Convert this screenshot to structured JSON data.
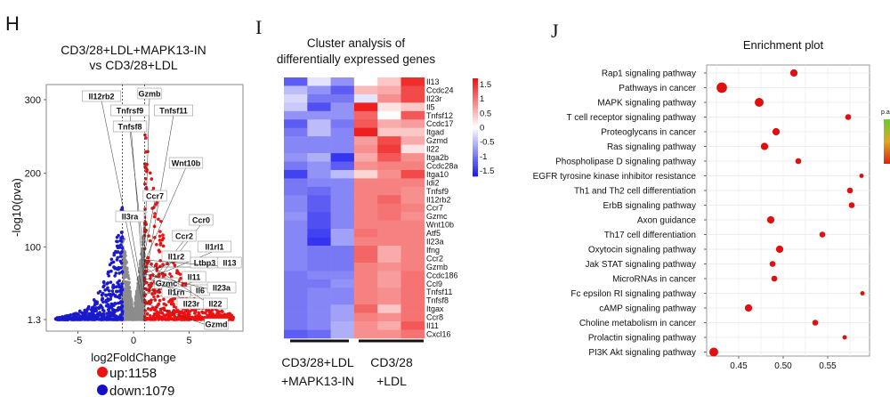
{
  "panels": {
    "h": "H",
    "i": "I",
    "j": "J"
  },
  "chart_data": [
    {
      "type": "scatter",
      "title": "CD3/28+LDL+MAPK13-IN vs CD3/28+LDL",
      "title_lines": [
        "CD3/28+LDL+MAPK13-IN",
        "vs CD3/28+LDL"
      ],
      "xlabel": "log2FoldChange",
      "ylabel": "-log10(pva)",
      "xticks": [
        "-5",
        "0",
        "5"
      ],
      "yticks": [
        "1.3",
        "100",
        "200",
        "300"
      ],
      "xlim": [
        -7.9,
        9.8
      ],
      "ylim": [
        -15,
        320
      ],
      "thresholds": {
        "log2fc": [
          -1,
          1
        ],
        "neg_log10_p": 1.3
      },
      "legend": [
        {
          "label": "up:1158",
          "color": "#ee1111"
        },
        {
          "label": "down:1079",
          "color": "#1111cc"
        }
      ],
      "colors": {
        "up": "#ee1111",
        "down": "#1a1acc",
        "ns": "#8c8c8c"
      },
      "labeled_genes": [
        "Il12rb2",
        "Gzmb",
        "Tnfrsf9",
        "Tnfsf11",
        "Tnfsf8",
        "Wnt10b",
        "Ccr7",
        "Il3ra",
        "Ccr0",
        "Ccr2",
        "Il1rl1",
        "Il1r2",
        "Ltbp3",
        "Il13",
        "Il11",
        "Gzmc",
        "Il1rn",
        "Il6",
        "Il23a",
        "Il23r",
        "Il22",
        "Gzmd"
      ]
    },
    {
      "type": "heatmap",
      "title_lines": [
        "Cluster analysis of",
        "differentially expressed genes"
      ],
      "groups": [
        {
          "label_lines": [
            "CD3/28+LDL",
            "+MAPK13-IN"
          ],
          "columns": 3
        },
        {
          "label_lines": [
            "CD3/28",
            "+LDL"
          ],
          "columns": 3
        }
      ],
      "rows": [
        "Il13",
        "Ccdc24",
        "Il23r",
        "Il5",
        "Tnfsf12",
        "Ccdc17",
        "Itgad",
        "Gzmd",
        "Il22",
        "Itga2b",
        "Ccdc28a",
        "Itga10",
        "Idi2",
        "Tnfsf9",
        "Il12rb2",
        "Ccr7",
        "Gzmc",
        "Wnt10b",
        "Atf5",
        "Il23a",
        "Ifng",
        "Ccr2",
        "Gzmb",
        "Ccdc186",
        "Ccl9",
        "Tnfsf11",
        "Tnfsf8",
        "Itgax",
        "Ccr8",
        "Il11",
        "Cxcl16"
      ],
      "values": [
        [
          -1.2,
          -0.2,
          -0.8,
          0.0,
          0.4,
          1.5
        ],
        [
          -0.5,
          -0.8,
          -1.2,
          0.5,
          0.6,
          1.3
        ],
        [
          -0.3,
          -1.0,
          -1.0,
          -0.2,
          0.8,
          1.3
        ],
        [
          -0.4,
          -1.3,
          -0.8,
          1.6,
          0.2,
          0.4
        ],
        [
          -0.8,
          -0.8,
          -0.8,
          1.1,
          0.0,
          1.2
        ],
        [
          -1.2,
          -0.5,
          -1.0,
          1.2,
          0.6,
          0.7
        ],
        [
          -1.0,
          -0.5,
          -0.9,
          1.6,
          0.4,
          0.4
        ],
        [
          -0.9,
          -0.9,
          -0.9,
          0.7,
          1.3,
          0.6
        ],
        [
          -0.9,
          -0.9,
          -0.9,
          0.8,
          1.4,
          0.2
        ],
        [
          -0.8,
          -0.6,
          -1.5,
          0.6,
          1.2,
          0.8
        ],
        [
          -1.0,
          -0.8,
          -1.2,
          0.8,
          0.9,
          0.9
        ],
        [
          -1.4,
          -0.8,
          -0.5,
          0.3,
          0.8,
          1.3
        ],
        [
          -1.0,
          -0.9,
          -0.9,
          0.9,
          0.9,
          0.9
        ],
        [
          -1.0,
          -1.1,
          -0.9,
          0.9,
          0.9,
          0.8
        ],
        [
          -0.9,
          -1.2,
          -0.9,
          0.9,
          1.1,
          0.8
        ],
        [
          -0.9,
          -1.2,
          -0.9,
          0.9,
          1.0,
          0.9
        ],
        [
          -0.8,
          -1.3,
          -0.9,
          0.9,
          1.0,
          0.8
        ],
        [
          -0.9,
          -1.3,
          -0.9,
          0.9,
          0.9,
          0.9
        ],
        [
          -0.9,
          -1.4,
          -0.7,
          1.0,
          0.9,
          0.9
        ],
        [
          -0.9,
          -1.5,
          -0.7,
          0.9,
          0.9,
          0.9
        ],
        [
          -0.9,
          -1.0,
          -1.0,
          1.1,
          0.6,
          0.9
        ],
        [
          -0.9,
          -1.0,
          -1.0,
          1.1,
          0.6,
          0.9
        ],
        [
          -0.9,
          -1.0,
          -1.0,
          0.9,
          0.8,
          0.9
        ],
        [
          -1.0,
          -0.9,
          -0.9,
          0.9,
          0.7,
          1.0
        ],
        [
          -1.0,
          -1.0,
          -0.8,
          0.9,
          0.7,
          1.0
        ],
        [
          -1.0,
          -0.9,
          -0.9,
          0.9,
          0.8,
          1.0
        ],
        [
          -1.0,
          -0.9,
          -0.9,
          0.9,
          0.8,
          1.0
        ],
        [
          -1.0,
          -0.9,
          -0.7,
          1.1,
          0.4,
          1.0
        ],
        [
          -1.0,
          -0.9,
          -0.7,
          0.9,
          0.8,
          1.0
        ],
        [
          -1.0,
          -0.9,
          -0.6,
          0.8,
          0.6,
          1.2
        ],
        [
          -1.2,
          -1.1,
          -0.6,
          0.8,
          0.8,
          1.0
        ]
      ],
      "colorbar": {
        "ticks": [
          "1.5",
          "1",
          "0.5",
          "0",
          "-0.5",
          "-1",
          "-1.5"
        ],
        "range": [
          -1.7,
          1.7
        ],
        "low": "#1a1aee",
        "mid": "#ffffff",
        "high": "#ee1111"
      }
    },
    {
      "type": "scatter",
      "title": "Enrichment plot",
      "xticks": [
        "0.45",
        "0.50",
        "0.55"
      ],
      "xlim": [
        0.414,
        0.597
      ],
      "grid": true,
      "legend_partial_title": "p.a",
      "legend_gradient": [
        "#66cc33",
        "#ddaa22",
        "#dd2211"
      ],
      "categories": [
        "Rap1 signaling pathway",
        "Pathways in cancer",
        "MAPK signaling pathway",
        "T cell receptor signaling pathway",
        "Proteoglycans in cancer",
        "Ras signaling pathway",
        "Phospholipase D signaling pathway",
        "EGFR tyrosine kinase inhibitor resistance",
        "Th1 and Th2 cell differentiation",
        "ErbB signaling pathway",
        "Axon guidance",
        "Th17 cell differentiation",
        "Oxytocin signaling pathway",
        "Jak STAT signaling pathway",
        "MicroRNAs in cancer",
        "Fc epsilon RI signaling pathway",
        "cAMP signaling pathway",
        "Choline metabolism in cancer",
        "Prolactin signaling pathway",
        "PI3K Akt signaling pathway"
      ],
      "x": [
        0.512,
        0.431,
        0.473,
        0.573,
        0.492,
        0.479,
        0.517,
        0.588,
        0.575,
        0.577,
        0.486,
        0.544,
        0.496,
        0.488,
        0.49,
        0.589,
        0.461,
        0.536,
        0.569,
        0.422
      ],
      "size_level": [
        3,
        5,
        4,
        2,
        3,
        3,
        2,
        1,
        2,
        2,
        3,
        2,
        3,
        2,
        2,
        1,
        3,
        2,
        1,
        4
      ],
      "point_color": "#e01010"
    }
  ]
}
